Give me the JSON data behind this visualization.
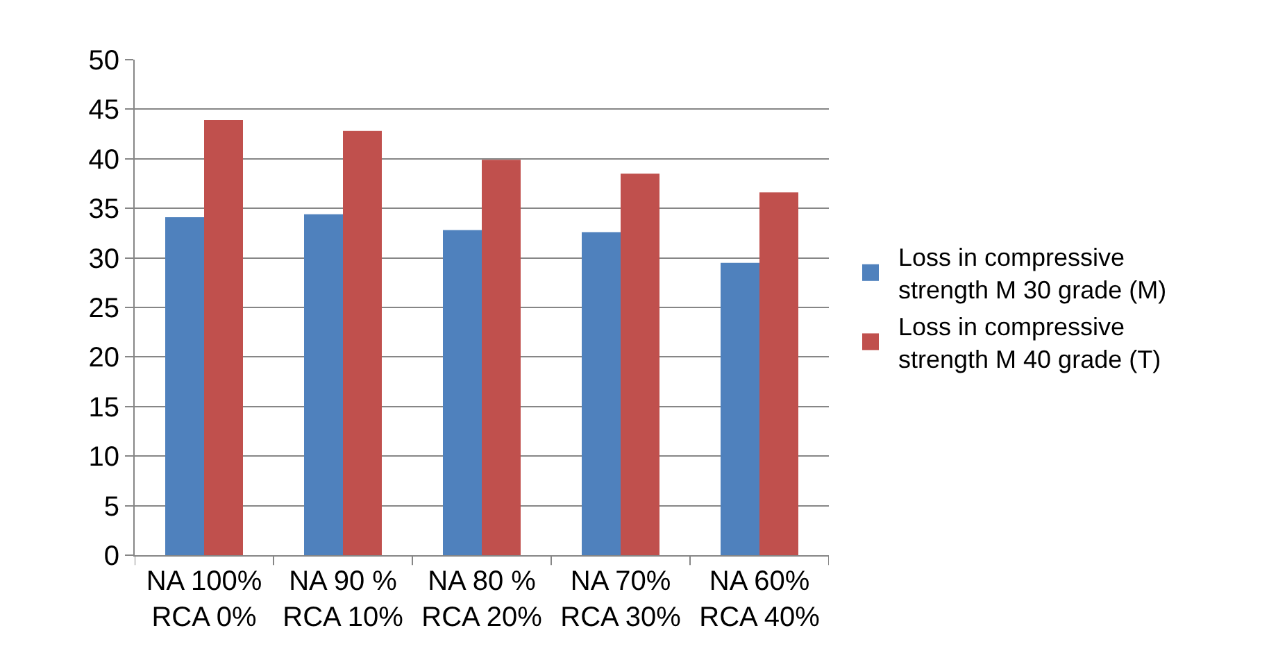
{
  "chart_data": {
    "type": "bar",
    "categories": [
      "NA 100%\nRCA 0%",
      "NA 90 %\nRCA 10%",
      "NA 80 %\nRCA 20%",
      "NA 70%\nRCA 30%",
      "NA 60%\nRCA 40%"
    ],
    "series": [
      {
        "name": "Loss in compressive strength M 30 grade (M)",
        "color": "#4f81bd",
        "values": [
          34.1,
          34.4,
          32.8,
          32.6,
          29.5
        ]
      },
      {
        "name": "Loss in compressive strength M 40 grade (T)",
        "color": "#c0504d",
        "values": [
          43.9,
          42.8,
          39.9,
          38.5,
          36.6
        ]
      }
    ],
    "ylim": [
      0,
      50
    ],
    "yticks": [
      0,
      5,
      10,
      15,
      20,
      25,
      30,
      35,
      40,
      45,
      50
    ],
    "grid": "y",
    "legend": "right"
  }
}
